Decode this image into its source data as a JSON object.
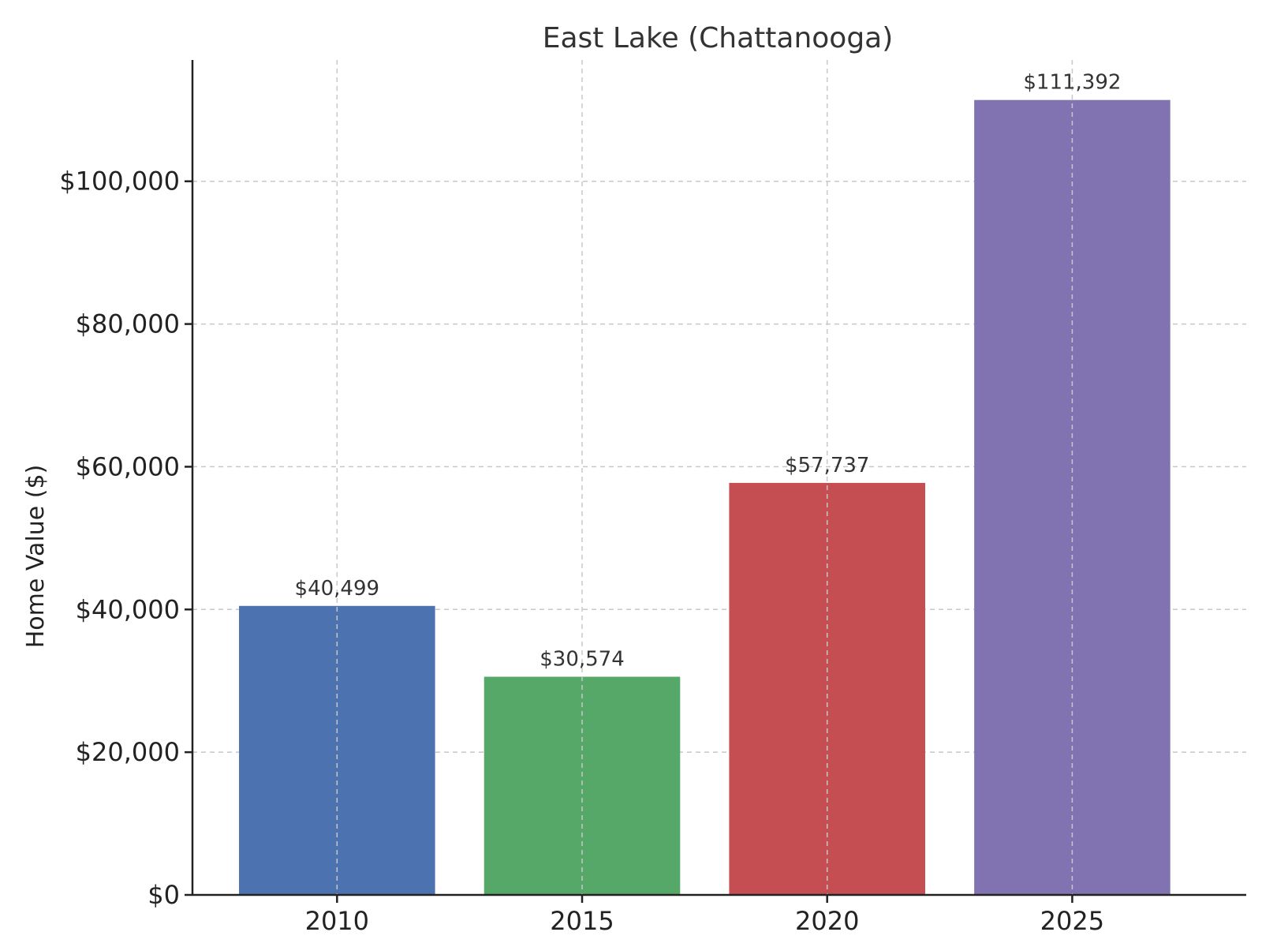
{
  "chart_data": {
    "type": "bar",
    "title": "East Lake (Chattanooga)",
    "xlabel": "",
    "ylabel": "Home Value ($)",
    "categories": [
      "2010",
      "2015",
      "2020",
      "2025"
    ],
    "values": [
      40499,
      30574,
      57737,
      111392
    ],
    "value_labels": [
      "$40,499",
      "$30,574",
      "$57,737",
      "$111,392"
    ],
    "colors": [
      "#4c72b0",
      "#55a868",
      "#c44e52",
      "#8172b2"
    ],
    "ylim": [
      0,
      117000
    ],
    "yticks": [
      0,
      20000,
      40000,
      60000,
      80000,
      100000
    ],
    "ytick_labels": [
      "$0",
      "$20,000",
      "$40,000",
      "$60,000",
      "$80,000",
      "$100,000"
    ],
    "grid": true
  }
}
